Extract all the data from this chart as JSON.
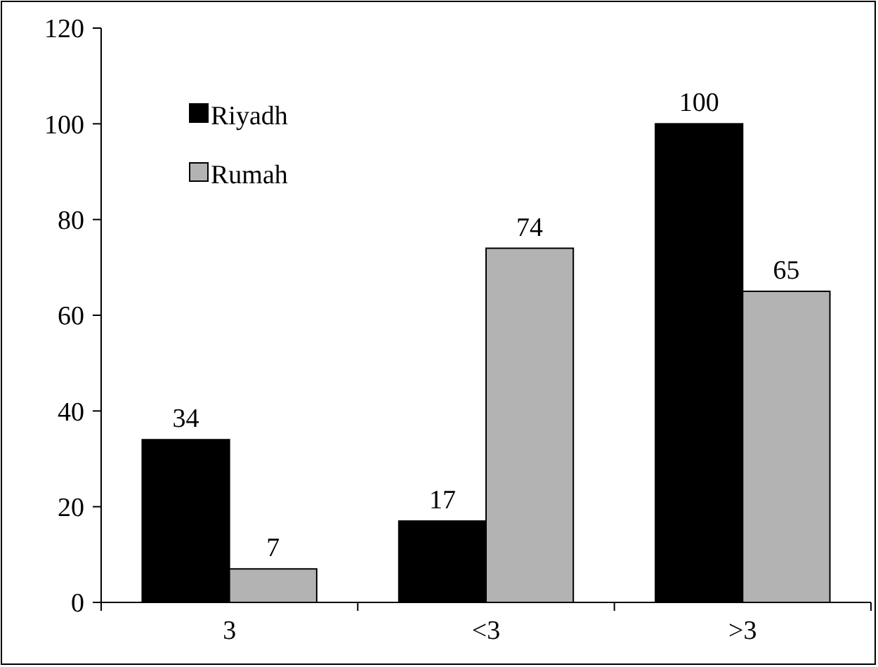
{
  "chart_data": {
    "type": "bar",
    "categories": [
      "3",
      "<3",
      ">3"
    ],
    "series": [
      {
        "name": "Riyadh",
        "color": "#000000",
        "values": [
          34,
          17,
          100
        ]
      },
      {
        "name": "Rumah",
        "color": "#b3b3b3",
        "values": [
          7,
          74,
          65
        ]
      }
    ],
    "ylim": [
      0,
      120
    ],
    "yticks": [
      0,
      20,
      40,
      60,
      80,
      100,
      120
    ],
    "data_labels": true,
    "legend": "top left",
    "grid": false
  }
}
